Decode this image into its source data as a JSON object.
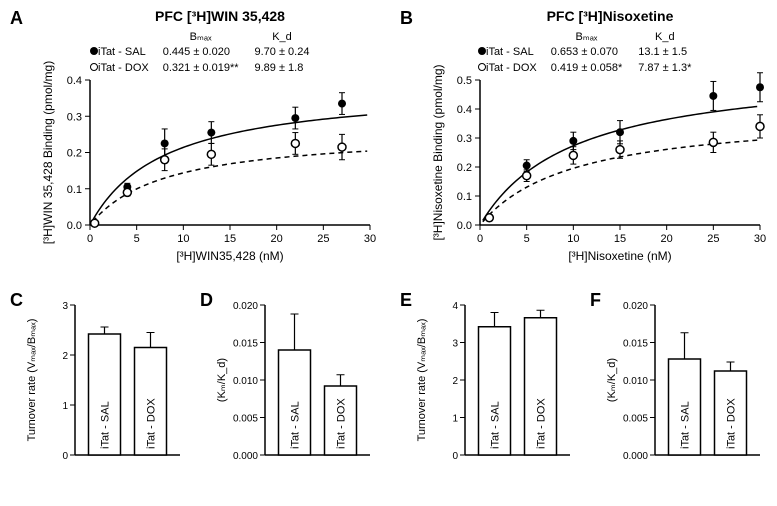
{
  "panelA": {
    "label": "A",
    "title": "PFC [³H]WIN 35,428",
    "legend": {
      "series1": "iTat - SAL",
      "series2": "iTat - DOX",
      "bmax_header": "Bₘₐₓ",
      "kd_header": "K_d",
      "bmax1": "0.445 ± 0.020",
      "bmax2": "0.321 ± 0.019**",
      "kd1": "9.70 ± 0.24",
      "kd2": "9.89 ± 1.8"
    },
    "chart": {
      "type": "scatter",
      "xlim": [
        0,
        30
      ],
      "xtick_step": 5,
      "ylim": [
        0,
        0.4
      ],
      "ytick_step": 0.1,
      "xlabel": "[³H]WIN35,428 (nM)",
      "ylabel": "[³H]WIN 35,428 Binding (pmol/mg)",
      "series": [
        {
          "name": "iTat-SAL",
          "marker": "filled",
          "line": "solid",
          "color": "#000000",
          "x": [
            0.5,
            4,
            8,
            13,
            22,
            27
          ],
          "y": [
            0.005,
            0.105,
            0.225,
            0.255,
            0.295,
            0.335
          ],
          "err": [
            0.005,
            0.01,
            0.04,
            0.03,
            0.03,
            0.03
          ]
        },
        {
          "name": "iTat-DOX",
          "marker": "open",
          "line": "dashed",
          "color": "#000000",
          "x": [
            0.5,
            4,
            8,
            13,
            22,
            27
          ],
          "y": [
            0.005,
            0.09,
            0.18,
            0.195,
            0.225,
            0.215
          ],
          "err": [
            0.005,
            0.01,
            0.03,
            0.03,
            0.03,
            0.035
          ]
        }
      ]
    }
  },
  "panelB": {
    "label": "B",
    "title": "PFC [³H]Nisoxetine",
    "legend": {
      "series1": "iTat - SAL",
      "series2": "iTat - DOX",
      "bmax_header": "Bₘₐₓ",
      "kd_header": "K_d",
      "bmax1": "0.653 ± 0.070",
      "bmax2": "0.419 ± 0.058*",
      "kd1": "13.1 ± 1.5",
      "kd2": "7.87 ± 1.3*"
    },
    "chart": {
      "type": "scatter",
      "xlim": [
        0,
        30
      ],
      "xtick_step": 5,
      "ylim": [
        0,
        0.5
      ],
      "ytick_step": 0.1,
      "xlabel": "[³H]Nisoxetine (nM)",
      "ylabel": "[³H]Nisoxetine Binding (pmol/mg)",
      "series": [
        {
          "name": "iTat-SAL",
          "marker": "filled",
          "line": "solid",
          "color": "#000000",
          "x": [
            1,
            5,
            10,
            15,
            25,
            30
          ],
          "y": [
            0.025,
            0.205,
            0.29,
            0.32,
            0.445,
            0.475
          ],
          "err": [
            0.01,
            0.02,
            0.03,
            0.04,
            0.05,
            0.05
          ]
        },
        {
          "name": "iTat-DOX",
          "marker": "open",
          "line": "dashed",
          "color": "#000000",
          "x": [
            1,
            5,
            10,
            15,
            25,
            30
          ],
          "y": [
            0.025,
            0.17,
            0.24,
            0.26,
            0.285,
            0.34
          ],
          "err": [
            0.01,
            0.02,
            0.03,
            0.03,
            0.035,
            0.04
          ]
        }
      ]
    }
  },
  "panelC": {
    "label": "C",
    "chart": {
      "type": "bar",
      "ylim": [
        0,
        3.0
      ],
      "ytick_step": 1.0,
      "ylabel": "Turnover rate (Vₘₐₓ/Bₘₐₓ)",
      "bars": [
        {
          "label": "iTat - SAL",
          "value": 2.42,
          "err": 0.14
        },
        {
          "label": "iTat - DOX",
          "value": 2.15,
          "err": 0.3
        }
      ],
      "bar_fill": "#ffffff",
      "bar_stroke": "#000000"
    }
  },
  "panelD": {
    "label": "D",
    "chart": {
      "type": "bar",
      "ylim": [
        0,
        0.02
      ],
      "ytick_step": 0.005,
      "ylabel": "(Kₘ/K_d)",
      "bars": [
        {
          "label": "iTat - SAL",
          "value": 0.014,
          "err": 0.0048
        },
        {
          "label": "iTat - DOX",
          "value": 0.0092,
          "err": 0.0015
        }
      ],
      "bar_fill": "#ffffff",
      "bar_stroke": "#000000"
    }
  },
  "panelE": {
    "label": "E",
    "chart": {
      "type": "bar",
      "ylim": [
        0,
        4.0
      ],
      "ytick_step": 1.0,
      "ylabel": "Turnover rate (Vₘₐₓ/Bₘₐₓ)",
      "bars": [
        {
          "label": "iTat - SAL",
          "value": 3.42,
          "err": 0.38
        },
        {
          "label": "iTat - DOX",
          "value": 3.66,
          "err": 0.2
        }
      ],
      "bar_fill": "#ffffff",
      "bar_stroke": "#000000"
    }
  },
  "panelF": {
    "label": "F",
    "chart": {
      "type": "bar",
      "ylim": [
        0,
        0.02
      ],
      "ytick_step": 0.005,
      "ylabel": "(Kₘ/K_d)",
      "bars": [
        {
          "label": "iTat - SAL",
          "value": 0.0128,
          "err": 0.0035
        },
        {
          "label": "iTat - DOX",
          "value": 0.0112,
          "err": 0.0012
        }
      ],
      "bar_fill": "#ffffff",
      "bar_stroke": "#000000"
    }
  },
  "style": {
    "font": "Arial",
    "axis_color": "#000000",
    "tick_fontsize": 11,
    "label_fontsize": 12,
    "title_fontsize": 14
  }
}
